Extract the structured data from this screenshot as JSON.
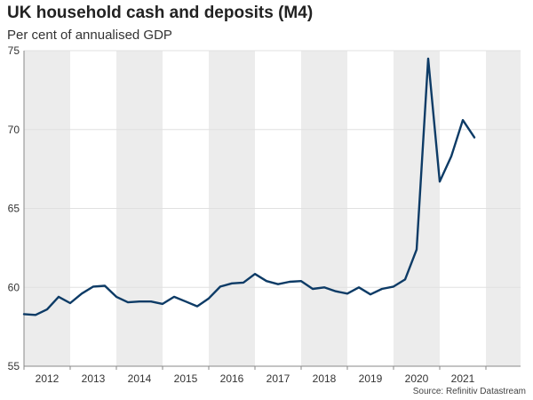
{
  "title": "UK household cash and deposits (M4)",
  "subtitle": "Per cent of annualised GDP",
  "source": "Source: Refinitiv Datastream",
  "colors": {
    "line": "#0d3b66",
    "band": "#ececec",
    "axis": "#888888",
    "grid": "#e0e0e0"
  },
  "chart_data": {
    "type": "line",
    "title": "UK household cash and deposits (M4)",
    "subtitle": "Per cent of annualised GDP",
    "xlabel": "",
    "ylabel": "",
    "ylim": [
      55,
      75
    ],
    "xlim": [
      2011.0,
      2021.75
    ],
    "yticks": [
      55,
      60,
      65,
      70,
      75
    ],
    "xtick_labels": [
      "2012",
      "2013",
      "2014",
      "2015",
      "2016",
      "2017",
      "2018",
      "2019",
      "2020",
      "2021"
    ],
    "grid": "horizontal",
    "shaded_alternate_years": true,
    "series": [
      {
        "values": [
          {
            "x": 2011.0,
            "y": 58.3
          },
          {
            "x": 2011.25,
            "y": 58.25
          },
          {
            "x": 2011.5,
            "y": 58.6
          },
          {
            "x": 2011.75,
            "y": 59.4
          },
          {
            "x": 2012.0,
            "y": 59.0
          },
          {
            "x": 2012.25,
            "y": 59.6
          },
          {
            "x": 2012.5,
            "y": 60.05
          },
          {
            "x": 2012.75,
            "y": 60.1
          },
          {
            "x": 2013.0,
            "y": 59.4
          },
          {
            "x": 2013.25,
            "y": 59.05
          },
          {
            "x": 2013.5,
            "y": 59.1
          },
          {
            "x": 2013.75,
            "y": 59.1
          },
          {
            "x": 2014.0,
            "y": 58.95
          },
          {
            "x": 2014.25,
            "y": 59.4
          },
          {
            "x": 2014.5,
            "y": 59.1
          },
          {
            "x": 2014.75,
            "y": 58.8
          },
          {
            "x": 2015.0,
            "y": 59.3
          },
          {
            "x": 2015.25,
            "y": 60.05
          },
          {
            "x": 2015.5,
            "y": 60.25
          },
          {
            "x": 2015.75,
            "y": 60.3
          },
          {
            "x": 2016.0,
            "y": 60.85
          },
          {
            "x": 2016.25,
            "y": 60.4
          },
          {
            "x": 2016.5,
            "y": 60.2
          },
          {
            "x": 2016.75,
            "y": 60.35
          },
          {
            "x": 2017.0,
            "y": 60.4
          },
          {
            "x": 2017.25,
            "y": 59.9
          },
          {
            "x": 2017.5,
            "y": 60.0
          },
          {
            "x": 2017.75,
            "y": 59.75
          },
          {
            "x": 2018.0,
            "y": 59.6
          },
          {
            "x": 2018.25,
            "y": 60.0
          },
          {
            "x": 2018.5,
            "y": 59.55
          },
          {
            "x": 2018.75,
            "y": 59.9
          },
          {
            "x": 2019.0,
            "y": 60.05
          },
          {
            "x": 2019.25,
            "y": 60.5
          },
          {
            "x": 2019.5,
            "y": 62.4
          },
          {
            "x": 2019.75,
            "y": 74.5
          },
          {
            "x": 2020.0,
            "y": 66.7
          },
          {
            "x": 2020.25,
            "y": 68.3
          },
          {
            "x": 2020.5,
            "y": 70.6
          },
          {
            "x": 2020.75,
            "y": 69.5
          }
        ]
      }
    ]
  }
}
